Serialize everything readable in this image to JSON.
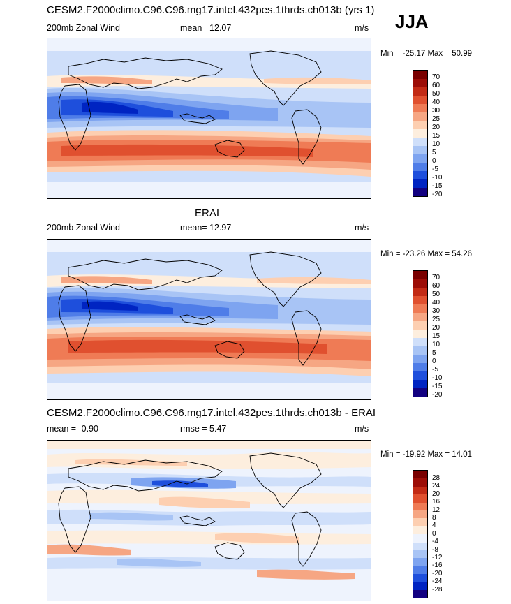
{
  "season": "JJA",
  "palette_main": [
    "#120080",
    "#0024c2",
    "#1e4fdc",
    "#4f7de8",
    "#7ea4f0",
    "#a8c4f5",
    "#cfdffa",
    "#fdeede",
    "#fdcfb1",
    "#f6a683",
    "#ef7b55",
    "#e0502f",
    "#c22a15",
    "#9c0d07",
    "#7a0000"
  ],
  "palette_diff": [
    "#120080",
    "#0024c2",
    "#1e4fdc",
    "#4f7de8",
    "#7ea4f0",
    "#a8c4f5",
    "#cfdffa",
    "#eef3fd",
    "#fdeede",
    "#fdcfb1",
    "#f6a683",
    "#ef7b55",
    "#e0502f",
    "#c22a15",
    "#9c0d07",
    "#7a0000"
  ],
  "panels": [
    {
      "title": "CESM2.F2000climo.C96.C96.mg17.intel.432pes.1thrds.ch013b (yrs 1)",
      "left_label": "200mb Zonal Wind",
      "mid_label": "mean=  12.07",
      "units": "m/s",
      "minmax": "Min = -25.17 Max =  50.99",
      "levels": [
        "70",
        "60",
        "50",
        "40",
        "30",
        "25",
        "20",
        "15",
        "10",
        "5",
        "0",
        "-5",
        "-10",
        "-15",
        "-20"
      ]
    },
    {
      "title": "ERAI",
      "left_label": "200mb Zonal Wind",
      "mid_label": "mean=  12.97",
      "units": "m/s",
      "minmax": "Min = -23.26 Max =  54.26",
      "levels": [
        "70",
        "60",
        "50",
        "40",
        "30",
        "25",
        "20",
        "15",
        "10",
        "5",
        "0",
        "-5",
        "-10",
        "-15",
        "-20"
      ]
    },
    {
      "title": "CESM2.F2000climo.C96.C96.mg17.intel.432pes.1thrds.ch013b - ERAI",
      "left_label": "mean =  -0.90",
      "mid_label": "rmse =   5.47",
      "units": "m/s",
      "minmax": "Min = -19.92 Max =  14.01",
      "levels": [
        "28",
        "24",
        "20",
        "16",
        "12",
        "8",
        "4",
        "0",
        "-4",
        "-8",
        "-12",
        "-16",
        "-20",
        "-24",
        "-28"
      ]
    }
  ]
}
